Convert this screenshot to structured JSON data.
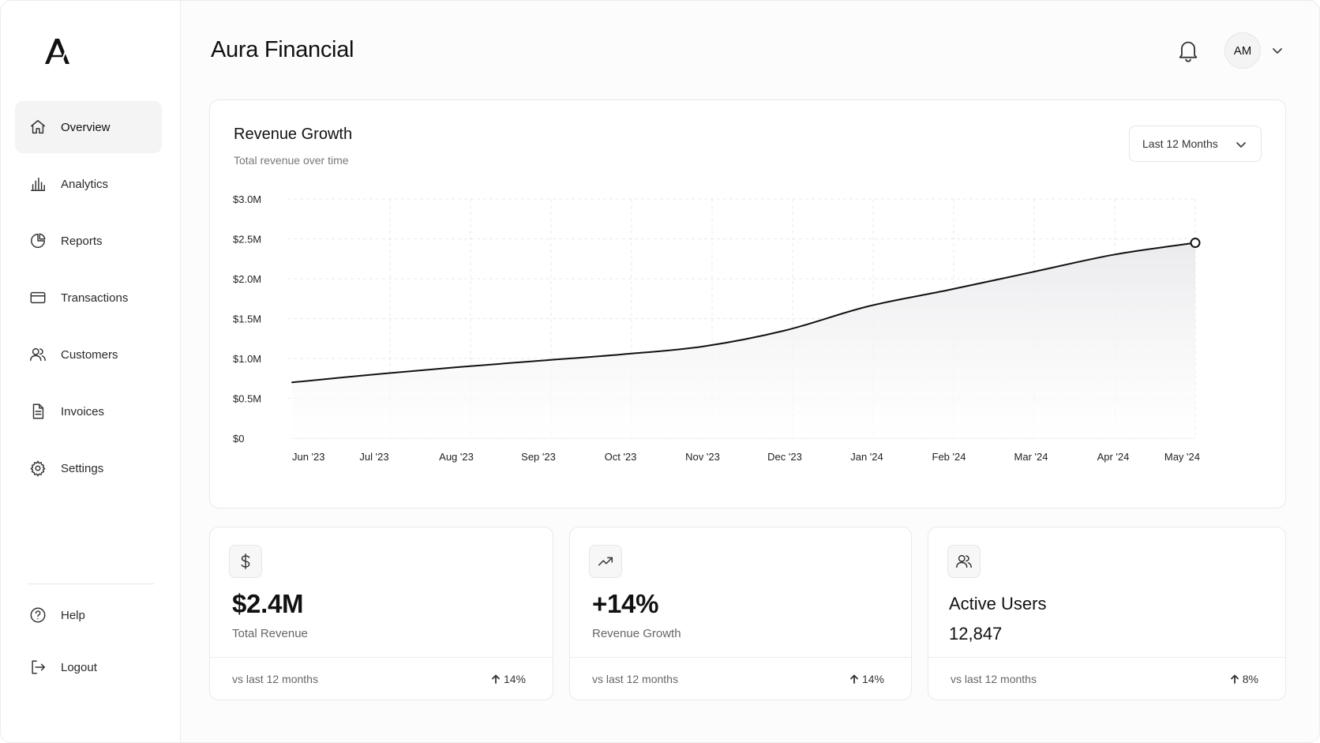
{
  "app": {
    "title": "Aura Financial"
  },
  "sidebar": {
    "items": [
      {
        "label": "Overview",
        "icon": "home-icon",
        "active": true
      },
      {
        "label": "Analytics",
        "icon": "bar-chart-icon"
      },
      {
        "label": "Reports",
        "icon": "pie-chart-icon"
      },
      {
        "label": "Transactions",
        "icon": "credit-card-icon"
      },
      {
        "label": "Customers",
        "icon": "users-icon"
      },
      {
        "label": "Invoices",
        "icon": "document-icon"
      },
      {
        "label": "Settings",
        "icon": "gear-icon"
      }
    ],
    "bottom": [
      {
        "label": "Help",
        "icon": "help-icon"
      },
      {
        "label": "Logout",
        "icon": "logout-icon"
      }
    ]
  },
  "header": {
    "avatar_initials": "AM"
  },
  "chart_card": {
    "title": "Revenue Growth",
    "subtitle": "Total revenue over time",
    "range_label": "Last 12 Months"
  },
  "chart_data": {
    "type": "area",
    "title": "Revenue Growth",
    "subtitle": "Total revenue over time",
    "categories": [
      "Jun '23",
      "Jul '23",
      "Aug '23",
      "Sep '23",
      "Oct '23",
      "Nov '23",
      "Dec '23",
      "Jan '24",
      "Feb '24",
      "Mar '24",
      "Apr '24",
      "May '24"
    ],
    "series": [
      {
        "values": [
          0.7,
          0.8,
          0.89,
          0.97,
          1.05,
          1.15,
          1.35,
          1.65,
          1.86,
          2.08,
          2.3,
          2.45
        ]
      }
    ],
    "y_ticks": [
      "$0",
      "$0.5M",
      "$1.0M",
      "$1.5M",
      "$2.0M",
      "$2.5M",
      "$3.0M"
    ],
    "ylim": [
      0,
      3.0
    ],
    "grid": true,
    "colors": {
      "line": "#111111",
      "fill": "#f0f0f2",
      "grid": "#e8e8e8"
    }
  },
  "stats": [
    {
      "icon": "dollar-icon",
      "value": "$2.4M",
      "label": "Total Revenue",
      "footer": "vs last 12 months",
      "change": "14%"
    },
    {
      "icon": "trending-up-icon",
      "value": "+14%",
      "label": "Revenue Growth",
      "footer": "vs last 12 months",
      "change": "14%"
    },
    {
      "icon": "users-icon",
      "title": "Active Users",
      "value": "12,847",
      "footer": "vs last 12 months",
      "change": "8%"
    }
  ]
}
